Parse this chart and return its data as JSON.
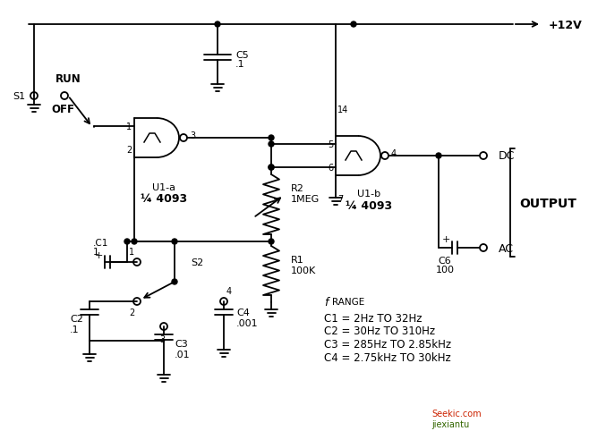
{
  "bg_color": "#ffffff",
  "line_color": "#000000",
  "figsize": [
    6.58,
    5.02
  ],
  "dpi": 100,
  "labels": {
    "C5": "C5",
    "C5v": ".1",
    "C6": "C6",
    "C6v": "100",
    "C1l": ".C1",
    "C1v": "1",
    "C2": "C2",
    "C2v": ".1",
    "C3": "C3",
    "C3v": ".01",
    "C4": "C4",
    "C4v": ".001",
    "R1": "R1",
    "R1v": "100K",
    "R2": "R2",
    "R2v": "1MEG",
    "U1a_name": "U1-a",
    "U1a_part": "4093",
    "U1a_frac": "¼",
    "U1b_name": "U1-b",
    "U1b_part": "4093",
    "U1b_frac": "¼",
    "S1_run": "RUN",
    "S1_off": "OFF",
    "S1": "S1",
    "S2": "S2",
    "VCC": "+12V",
    "DC": "DC",
    "AC": "AC",
    "OUTPUT": "OUTPUT",
    "frange_f": "f",
    "frange_r": "RANGE",
    "freq1": "C1 = 2Hz TO 32Hz",
    "freq2": "C2 = 30Hz TO 310Hz",
    "freq3": "C3 = 285Hz TO 2.85kHz",
    "freq4": "C4 = 2.75kHz TO 30kHz",
    "pin1": "1",
    "pin2": "2",
    "pin3": "3",
    "pin4": "4",
    "pin5": "5",
    "pin6": "6",
    "pin7": "7",
    "pin14": "14"
  },
  "watermark1": "Seekic.com",
  "watermark2": "jiexiantu"
}
